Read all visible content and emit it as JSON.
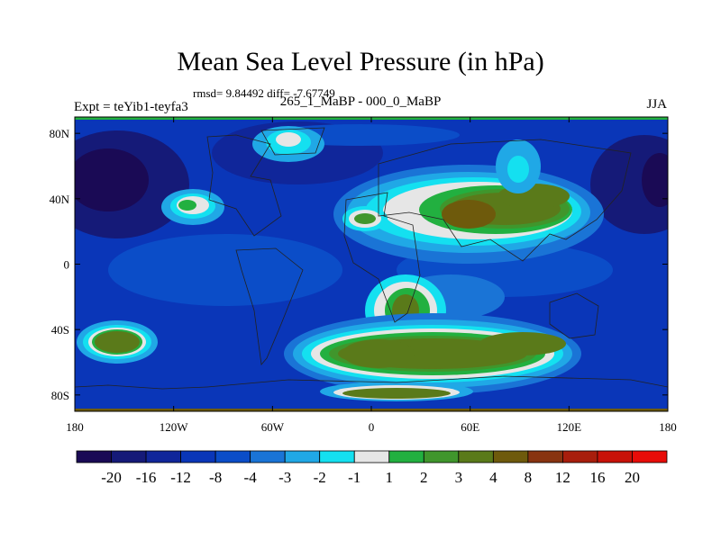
{
  "chart_data": {
    "type": "heatmap",
    "title": "Mean Sea Level Pressure (in hPa)",
    "stats": "rmsd= 9.84492 diff= -7.67749",
    "left_label": "Expt = teYib1-teyfa3",
    "subtitle": "265_1_MaBP - 000_0_MaBP",
    "right_label": "JJA",
    "x_ticks": [
      "180",
      "120W",
      "60W",
      "0",
      "60E",
      "120E",
      "180"
    ],
    "x_tick_values": [
      -180,
      -120,
      -60,
      0,
      60,
      120,
      180
    ],
    "y_ticks": [
      "80N",
      "40N",
      "0",
      "40S",
      "80S"
    ],
    "y_tick_values": [
      80,
      40,
      0,
      -40,
      -80
    ],
    "xlim": [
      -180,
      180
    ],
    "ylim": [
      -90,
      90
    ],
    "colorbar": {
      "labels": [
        "-20",
        "-16",
        "-12",
        "-8",
        "-4",
        "-3",
        "-2",
        "-1",
        "1",
        "2",
        "3",
        "4",
        "8",
        "12",
        "16",
        "20"
      ],
      "colors": [
        "#1a0a55",
        "#151a78",
        "#10269a",
        "#0a36b8",
        "#0b4dc8",
        "#1a74d6",
        "#20a8e6",
        "#14e0f0",
        "#e6e6e6",
        "#22b040",
        "#40962c",
        "#5a7a1a",
        "#6e5a0c",
        "#883410",
        "#a81e0c",
        "#c81208",
        "#e80c08"
      ]
    },
    "field_features": [
      {
        "name": "southern-ocean-high",
        "lon": 20,
        "lat": -50,
        "value": 8
      },
      {
        "name": "south-atlantic-high",
        "lon": 10,
        "lat": -25,
        "value": 4
      },
      {
        "name": "antarctic-coast-high",
        "lon": 5,
        "lat": -82,
        "value": 8
      },
      {
        "name": "asia-high",
        "lon": 60,
        "lat": 35,
        "value": 8
      },
      {
        "name": "siberia-anomaly",
        "lon": 70,
        "lat": 55,
        "value": 3
      },
      {
        "name": "arctic-anomaly",
        "lon": -50,
        "lat": 80,
        "value": 1
      },
      {
        "name": "north-pacific-anomaly",
        "lon": -135,
        "lat": 38,
        "value": 3
      },
      {
        "name": "mediterranean-anomaly",
        "lon": -5,
        "lat": 30,
        "value": 4
      },
      {
        "name": "south-pacific-high",
        "lon": -155,
        "lat": -42,
        "value": 8
      },
      {
        "name": "tropical-pacific-low",
        "lon": -120,
        "lat": 0,
        "value": -12
      },
      {
        "name": "north-pacific-low",
        "lon": 170,
        "lat": 50,
        "value": -20
      },
      {
        "name": "north-atlantic-low",
        "lon": -30,
        "lat": 60,
        "value": -16
      }
    ]
  }
}
